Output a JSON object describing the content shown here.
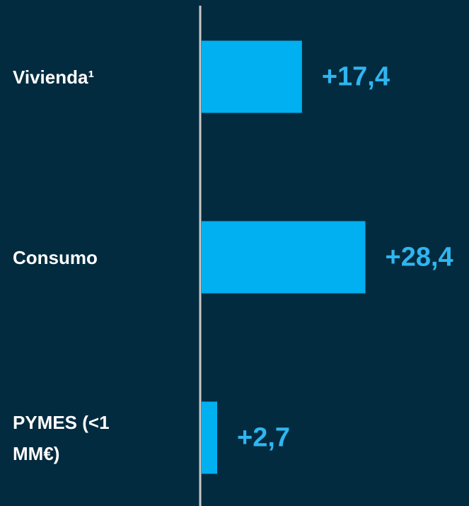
{
  "chart_data": {
    "type": "bar",
    "orientation": "horizontal",
    "categories": [
      "Vivienda¹",
      "Consumo",
      "PYMES (<1 MM€)"
    ],
    "values": [
      17.4,
      28.4,
      2.7
    ],
    "value_labels": [
      "+17,4",
      "+28,4",
      "+2,7"
    ],
    "color": "#00b0f0",
    "label_color": "#2fb6f0",
    "xlim": [
      0,
      46
    ]
  }
}
